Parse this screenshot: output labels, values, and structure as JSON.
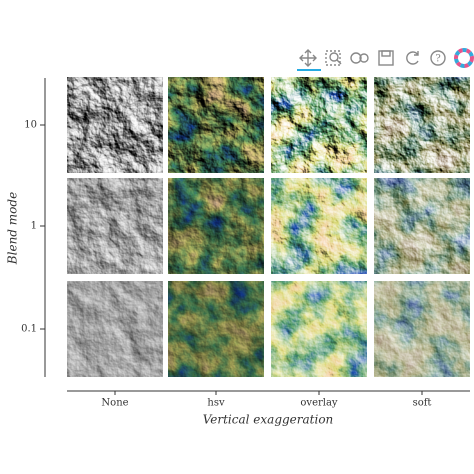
{
  "chart_data": {
    "type": "image-grid",
    "xlabel": "Vertical exaggeration",
    "ylabel": "Blend mode",
    "columns": [
      "None",
      "hsv",
      "overlay",
      "soft"
    ],
    "rows": [
      "10",
      "1",
      "0.1"
    ]
  }
}
